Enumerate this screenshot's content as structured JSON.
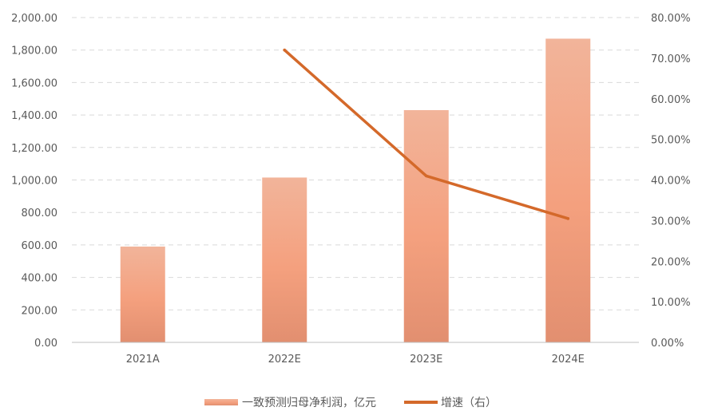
{
  "chart_data": {
    "type": "bar",
    "categories": [
      "2021A",
      "2022E",
      "2023E",
      "2024E"
    ],
    "series": [
      {
        "name": "一致预测归母净利润，亿元",
        "type": "bar",
        "axis": "left",
        "color": "#f4a584",
        "values": [
          590,
          1015,
          1430,
          1870
        ]
      },
      {
        "name": "增速（右）",
        "type": "line",
        "axis": "right",
        "color": "#d4692a",
        "values": [
          null,
          72.0,
          41.0,
          30.5
        ]
      }
    ],
    "y_left": {
      "lim": [
        0,
        2000
      ],
      "ticks": [
        "0.00",
        "200.00",
        "400.00",
        "600.00",
        "800.00",
        "1,000.00",
        "1,200.00",
        "1,400.00",
        "1,600.00",
        "1,800.00",
        "2,000.00"
      ]
    },
    "y_right": {
      "lim": [
        0,
        80
      ],
      "ticks": [
        "0.00%",
        "10.00%",
        "20.00%",
        "30.00%",
        "40.00%",
        "50.00%",
        "60.00%",
        "70.00%",
        "80.00%"
      ]
    },
    "grid": true,
    "legend": "bottom"
  }
}
